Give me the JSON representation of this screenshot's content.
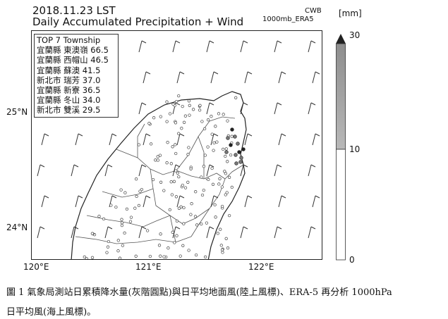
{
  "header": {
    "date": "2018.11.23 LST",
    "title": "Daily Accumulated Precipitation + Wind",
    "source_agency": "CWB",
    "source_dataset": "1000mb_ERA5"
  },
  "legend": {
    "title": "TOP 7 Township",
    "entries": [
      "宜蘭縣 東澳嶺 66.5",
      "宜蘭縣 西帽山 46.5",
      "宜蘭縣 蘇澳 41.5",
      "新北市 瑞芳 37.0",
      "宜蘭縣 新寮 36.5",
      "宜蘭縣 冬山 34.0",
      "新北市 雙溪 29.5"
    ]
  },
  "axes": {
    "lat_labels": [
      "25°N",
      "24°N"
    ],
    "lon_labels": [
      "120°E",
      "121°E",
      "122°E"
    ]
  },
  "colorbar": {
    "unit": "[mm]",
    "ticks": [
      "30",
      "10",
      "0"
    ],
    "colors": {
      "high": "#9a9a9a",
      "low": "#ffffff",
      "extend": "#222222"
    }
  },
  "caption": {
    "line1": "圖 1 氣象局測站日累積降水量(灰階圓點)與日平均地面風(陸上風標)、ERA-5 再分析 1000hPa",
    "line2": "日平均風(海上風標)。"
  },
  "map": {
    "region": "Northern Taiwan",
    "station_marker": "circle",
    "wind_marker": "wind-barb"
  }
}
